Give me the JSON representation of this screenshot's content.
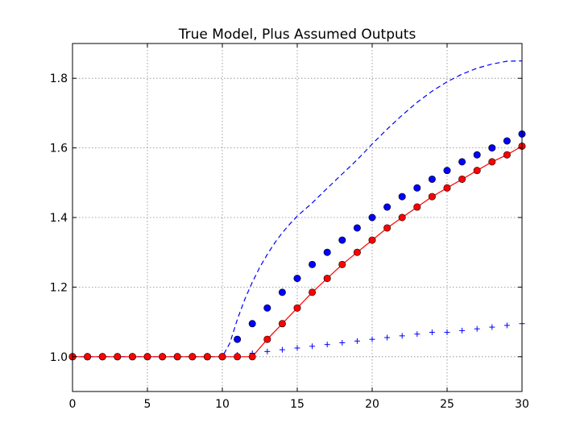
{
  "chart_data": {
    "type": "line",
    "title": "True Model, Plus Assumed Outputs",
    "xlabel": "",
    "ylabel": "",
    "xlim": [
      0,
      30
    ],
    "ylim": [
      0.9,
      1.9
    ],
    "xticks": [
      0,
      5,
      10,
      15,
      20,
      25,
      30
    ],
    "yticks": [
      1.0,
      1.2,
      1.4,
      1.6,
      1.8
    ],
    "ytick_labels": [
      "1.0",
      "1.2",
      "1.4",
      "1.6",
      "1.8"
    ],
    "grid": true,
    "legend": "none",
    "series": [
      {
        "style": "dashed-line",
        "color": "#0000ff",
        "x": [
          0,
          1,
          2,
          3,
          4,
          5,
          6,
          7,
          8,
          9,
          10,
          10.5,
          11,
          11.5,
          12,
          12.5,
          13,
          13.5,
          14,
          14.5,
          15,
          16,
          17,
          18,
          19,
          20,
          21,
          22,
          23,
          24,
          25,
          26,
          27,
          28,
          29,
          30
        ],
        "y": [
          1,
          1,
          1,
          1,
          1,
          1,
          1,
          1,
          1,
          1,
          1,
          1.039,
          1.107,
          1.165,
          1.214,
          1.257,
          1.294,
          1.327,
          1.356,
          1.381,
          1.404,
          1.442,
          1.484,
          1.525,
          1.566,
          1.611,
          1.654,
          1.694,
          1.731,
          1.763,
          1.79,
          1.812,
          1.829,
          1.841,
          1.849,
          1.85
        ]
      },
      {
        "style": "circle-markers",
        "color": "#0000ff",
        "x": [
          0,
          1,
          2,
          3,
          4,
          5,
          6,
          7,
          8,
          9,
          10,
          11,
          12,
          13,
          14,
          15,
          16,
          17,
          18,
          19,
          20,
          21,
          22,
          23,
          24,
          25,
          26,
          27,
          28,
          29,
          30
        ],
        "y": [
          1,
          1,
          1,
          1,
          1,
          1,
          1,
          1,
          1,
          1,
          1,
          1.05,
          1.095,
          1.14,
          1.185,
          1.225,
          1.265,
          1.3,
          1.335,
          1.37,
          1.4,
          1.43,
          1.46,
          1.485,
          1.51,
          1.535,
          1.56,
          1.58,
          1.6,
          1.62,
          1.64
        ]
      },
      {
        "style": "plus-markers",
        "color": "#0000ff",
        "x": [
          0,
          1,
          2,
          3,
          4,
          5,
          6,
          7,
          8,
          9,
          10,
          11,
          12,
          13,
          14,
          15,
          16,
          17,
          18,
          19,
          20,
          21,
          22,
          23,
          24,
          25,
          26,
          27,
          28,
          29,
          30
        ],
        "y": [
          1,
          1,
          1,
          1,
          1,
          1,
          1,
          1,
          1,
          1,
          1,
          1.005,
          1.01,
          1.015,
          1.02,
          1.025,
          1.03,
          1.035,
          1.04,
          1.045,
          1.05,
          1.055,
          1.06,
          1.065,
          1.07,
          1.07,
          1.075,
          1.08,
          1.085,
          1.09,
          1.095
        ]
      },
      {
        "style": "line-with-circle-markers",
        "color": "#ff0000",
        "x": [
          0,
          1,
          2,
          3,
          4,
          5,
          6,
          7,
          8,
          9,
          10,
          11,
          12,
          13,
          14,
          15,
          16,
          17,
          18,
          19,
          20,
          21,
          22,
          23,
          24,
          25,
          26,
          27,
          28,
          29,
          30
        ],
        "y": [
          1,
          1,
          1,
          1,
          1,
          1,
          1,
          1,
          1,
          1,
          1,
          1,
          1,
          1.05,
          1.095,
          1.14,
          1.185,
          1.225,
          1.265,
          1.3,
          1.335,
          1.37,
          1.4,
          1.43,
          1.46,
          1.485,
          1.51,
          1.535,
          1.56,
          1.58,
          1.605
        ]
      }
    ]
  }
}
